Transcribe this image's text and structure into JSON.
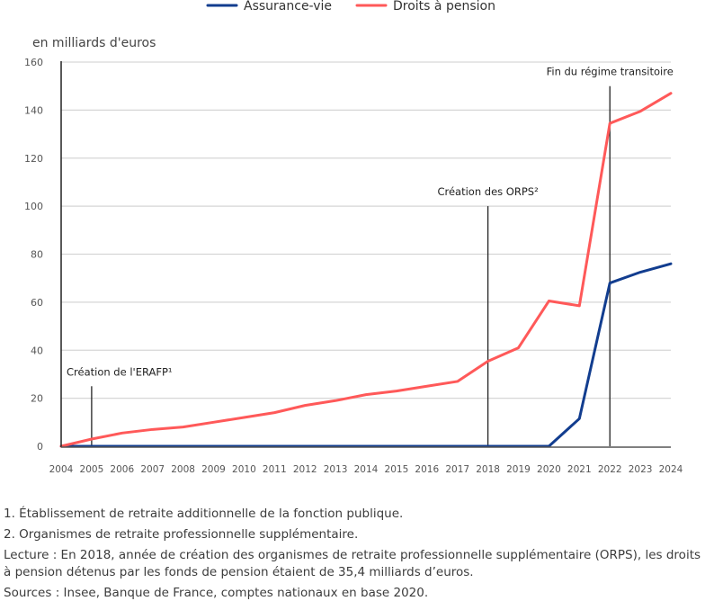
{
  "chart_data": {
    "type": "line",
    "title": "",
    "unit_label": "en milliards d'euros",
    "xlabel": "",
    "ylabel": "en milliards d'euros",
    "x": [
      "2004",
      "2005",
      "2006",
      "2007",
      "2008",
      "2009",
      "2010",
      "2011",
      "2012",
      "2013",
      "2014",
      "2015",
      "2016",
      "2017",
      "2018",
      "2019",
      "2020",
      "2021",
      "2022",
      "2023",
      "2024"
    ],
    "ylim": [
      0,
      160
    ],
    "yticks": [
      0,
      20,
      40,
      60,
      80,
      100,
      120,
      140,
      160
    ],
    "grid": true,
    "legend_position": "top-center",
    "series": [
      {
        "name": "Assurance-vie",
        "color": "#123d8f",
        "values": [
          0,
          0,
          0,
          0,
          0,
          0,
          0,
          0,
          0,
          0,
          0,
          0,
          0,
          0,
          0,
          0,
          0,
          11.5,
          68,
          72.5,
          76
        ]
      },
      {
        "name": "Droits à pension",
        "color": "#ff5959",
        "values": [
          0,
          3,
          5.5,
          7,
          8,
          10,
          12,
          14,
          17,
          19,
          21.5,
          23,
          25,
          27,
          35.4,
          41,
          60.5,
          58.5,
          134.5,
          139.5,
          147
        ]
      }
    ],
    "annotations": [
      {
        "x": "2005",
        "label": "Création de l'ERAFP¹",
        "line_top": 25
      },
      {
        "x": "2018",
        "label": "Création des ORPS²",
        "line_top": 100
      },
      {
        "x": "2022",
        "label": "Fin du régime transitoire",
        "line_top": 150
      }
    ]
  },
  "notes": {
    "note1": "1. Établissement de retraite additionnelle de la fonction publique.",
    "note2": "2. Organismes de retraite professionnelle supplémentaire.",
    "lecture": "Lecture : En 2018, année de création des organismes de retraite professionnelle supplémentaire (ORPS), les droits à pension détenus par les fonds de pension étaient de 35,4 milliards d’euros.",
    "sources": "Sources : Insee, Banque de France, comptes nationaux en base 2020."
  }
}
